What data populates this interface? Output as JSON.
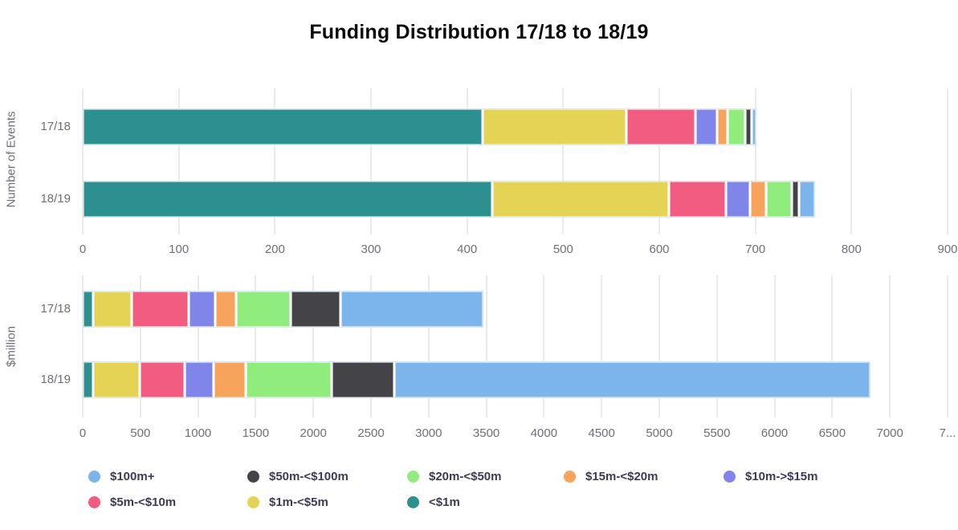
{
  "title": "Funding Distribution 17/18 to 18/19",
  "palette": {
    "blue": "#7cb5ec",
    "dark": "#434348",
    "green": "#90ed7d",
    "orange": "#f7a35c",
    "purple": "#8085e9",
    "pink": "#f15c80",
    "yellow": "#e4d354",
    "teal": "#2b908f",
    "gridline": "#ebebeb",
    "axis_text": "#6e6e78",
    "legend_text": "#3b3b55",
    "title_text": "#0b0b0b"
  },
  "chart_data": [
    {
      "type": "bar",
      "stacked": true,
      "orientation": "horizontal",
      "ylabel": "Number of Events",
      "xlabel": "",
      "categories": [
        "17/18",
        "18/19"
      ],
      "xlim": [
        0,
        900
      ],
      "xticks": [
        0,
        100,
        200,
        300,
        400,
        500,
        600,
        700,
        800,
        900
      ],
      "xtick_labels": [
        "0",
        "100",
        "200",
        "300",
        "400",
        "500",
        "600",
        "700",
        "800",
        "900"
      ],
      "grid": true,
      "series": [
        {
          "name": "<$1m",
          "color": "#2b908f",
          "values": [
            415,
            425
          ]
        },
        {
          "name": "$1m-<$5m",
          "color": "#e4d354",
          "values": [
            150,
            185
          ]
        },
        {
          "name": "$5m-<$10m",
          "color": "#f15c80",
          "values": [
            72,
            59
          ]
        },
        {
          "name": "$10m->$15m",
          "color": "#8085e9",
          "values": [
            23,
            25
          ]
        },
        {
          "name": "$15m-<$20m",
          "color": "#f7a35c",
          "values": [
            11,
            17
          ]
        },
        {
          "name": "$20m-<$50m",
          "color": "#90ed7d",
          "values": [
            18,
            27
          ]
        },
        {
          "name": "$50m-<$100m",
          "color": "#434348",
          "values": [
            7,
            7
          ]
        },
        {
          "name": "$100m+",
          "color": "#7cb5ec",
          "values": [
            5,
            17
          ]
        }
      ],
      "totals": [
        701,
        762
      ]
    },
    {
      "type": "bar",
      "stacked": true,
      "orientation": "horizontal",
      "ylabel": "$million",
      "xlabel": "",
      "categories": [
        "17/18",
        "18/19"
      ],
      "xlim": [
        0,
        7500
      ],
      "xticks": [
        0,
        500,
        1000,
        1500,
        2000,
        2500,
        3000,
        3500,
        4000,
        4500,
        5000,
        5500,
        6000,
        6500,
        7000,
        7500
      ],
      "xtick_labels": [
        "0",
        "500",
        "1000",
        "1500",
        "2000",
        "2500",
        "3000",
        "3500",
        "4000",
        "4500",
        "5000",
        "5500",
        "6000",
        "6500",
        "7000",
        "7..."
      ],
      "grid": true,
      "series": [
        {
          "name": "<$1m",
          "color": "#2b908f",
          "values": [
            80,
            75
          ]
        },
        {
          "name": "$1m-<$5m",
          "color": "#e4d354",
          "values": [
            330,
            405
          ]
        },
        {
          "name": "$5m-<$10m",
          "color": "#f15c80",
          "values": [
            500,
            390
          ]
        },
        {
          "name": "$10m->$15m",
          "color": "#8085e9",
          "values": [
            230,
            255
          ]
        },
        {
          "name": "$15m-<$20m",
          "color": "#f7a35c",
          "values": [
            180,
            280
          ]
        },
        {
          "name": "$20m-<$50m",
          "color": "#90ed7d",
          "values": [
            480,
            745
          ]
        },
        {
          "name": "$50m-<$100m",
          "color": "#434348",
          "values": [
            430,
            545
          ]
        },
        {
          "name": "$100m+",
          "color": "#7cb5ec",
          "values": [
            1245,
            4135
          ]
        }
      ],
      "totals": [
        3475,
        6830
      ]
    }
  ],
  "legend": {
    "position": "bottom",
    "rows": [
      [
        {
          "label": "$100m+",
          "color": "#7cb5ec"
        },
        {
          "label": "$50m-<$100m",
          "color": "#434348"
        },
        {
          "label": "$20m-<$50m",
          "color": "#90ed7d"
        },
        {
          "label": "$15m-<$20m",
          "color": "#f7a35c"
        },
        {
          "label": "$10m->$15m",
          "color": "#8085e9"
        }
      ],
      [
        {
          "label": "$5m-<$10m",
          "color": "#f15c80"
        },
        {
          "label": "$1m-<$5m",
          "color": "#e4d354"
        },
        {
          "label": "<$1m",
          "color": "#2b908f"
        }
      ]
    ]
  }
}
